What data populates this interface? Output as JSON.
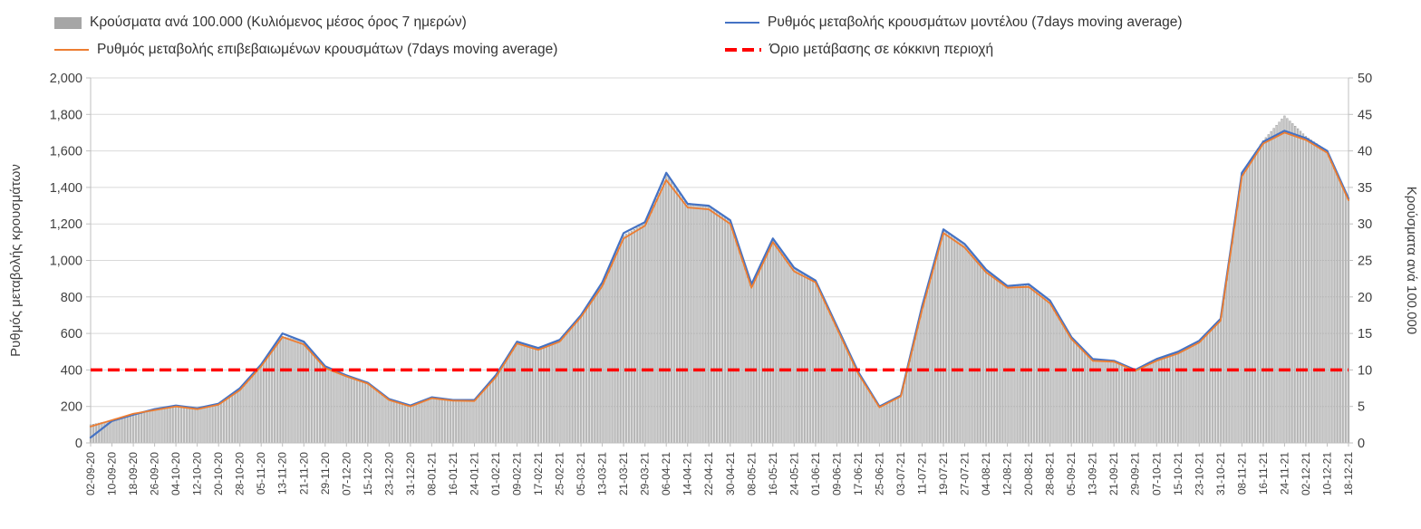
{
  "legend": {
    "bars": "Κρούσματα ανά 100.000 (Κυλιόμενος μέσος όρος 7 ημερών)",
    "model": "Ρυθμός μεταβολής κρουσμάτων μοντέλου (7days moving average)",
    "confirmed": "Ρυθμός μεταβολής επιβεβαιωμένων κρουσμάτων (7days moving average)",
    "threshold": "Όριο μετάβασης σε κόκκινη περιοχή"
  },
  "colors": {
    "bars": "#c9c9c9",
    "bars_stroke": "#8f8f8f",
    "model": "#4472c4",
    "confirmed": "#ed7d31",
    "threshold": "#ff0000",
    "grid": "#d9d9d9",
    "axis": "#bfbfbf",
    "text": "#404040"
  },
  "chart_data": {
    "type": "combo-bar-line",
    "x_tick_interval_days": 8,
    "x": [
      "02-09-20",
      "10-09-20",
      "18-09-20",
      "26-09-20",
      "04-10-20",
      "12-10-20",
      "20-10-20",
      "28-10-20",
      "05-11-20",
      "13-11-20",
      "21-11-20",
      "29-11-20",
      "07-12-20",
      "15-12-20",
      "23-12-20",
      "31-12-20",
      "08-01-21",
      "16-01-21",
      "24-01-21",
      "01-02-21",
      "09-02-21",
      "17-02-21",
      "25-02-21",
      "05-03-21",
      "13-03-21",
      "21-03-21",
      "29-03-21",
      "06-04-21",
      "14-04-21",
      "22-04-21",
      "30-04-21",
      "08-05-21",
      "16-05-21",
      "24-05-21",
      "01-06-21",
      "09-06-21",
      "17-06-21",
      "25-06-21",
      "03-07-21",
      "11-07-21",
      "19-07-21",
      "27-07-21",
      "04-08-21",
      "12-08-21",
      "20-08-21",
      "28-08-21",
      "05-09-21",
      "13-09-21",
      "21-09-21",
      "29-09-21",
      "07-10-21",
      "15-10-21",
      "23-10-21",
      "31-10-21",
      "08-11-21",
      "16-11-21",
      "24-11-21",
      "02-12-21",
      "10-12-21",
      "18-12-21"
    ],
    "series": [
      {
        "name": "Κρούσματα ανά 100.000 (Κυλιόμενος μέσος όρος 7 ημερών)",
        "type": "bar",
        "axis": "right",
        "values": [
          2.5,
          3.1,
          3.9,
          4.6,
          5.1,
          4.7,
          5.4,
          7.3,
          10.6,
          14.6,
          13.9,
          10.4,
          9.2,
          8.2,
          5.9,
          5.1,
          6.2,
          5.9,
          5.8,
          9.1,
          13.8,
          12.9,
          14.1,
          17.4,
          21.9,
          28.4,
          30.1,
          36.8,
          32.6,
          32.4,
          30.4,
          21.6,
          27.9,
          23.9,
          22.1,
          15.9,
          9.7,
          4.9,
          6.4,
          18.6,
          29.1,
          27.2,
          23.7,
          21.4,
          21.6,
          19.4,
          14.4,
          11.4,
          11.2,
          10.0,
          11.4,
          12.4,
          13.9,
          16.9,
          37.0,
          41.4,
          44.8,
          42.0,
          40.0,
          33.4
        ]
      },
      {
        "name": "Ρυθμός μεταβολής κρουσμάτων μοντέλου (7days moving average)",
        "type": "line",
        "axis": "left",
        "values": [
          30,
          120,
          155,
          185,
          205,
          190,
          215,
          300,
          430,
          600,
          555,
          420,
          370,
          330,
          240,
          205,
          250,
          235,
          235,
          370,
          555,
          520,
          565,
          700,
          880,
          1150,
          1210,
          1480,
          1310,
          1300,
          1220,
          870,
          1120,
          960,
          890,
          640,
          390,
          200,
          260,
          750,
          1170,
          1090,
          950,
          860,
          870,
          780,
          580,
          460,
          450,
          400,
          460,
          500,
          560,
          680,
          1480,
          1650,
          1710,
          1670,
          1600,
          1340
        ]
      },
      {
        "name": "Ρυθμός μεταβολής επιβεβαιωμένων κρουσμάτων (7days moving average)",
        "type": "line",
        "axis": "left",
        "values": [
          90,
          125,
          160,
          180,
          200,
          185,
          210,
          290,
          420,
          580,
          540,
          410,
          365,
          325,
          235,
          200,
          245,
          232,
          230,
          360,
          545,
          510,
          555,
          690,
          860,
          1120,
          1190,
          1440,
          1290,
          1280,
          1200,
          850,
          1100,
          940,
          880,
          630,
          380,
          195,
          255,
          730,
          1150,
          1070,
          935,
          850,
          855,
          765,
          570,
          450,
          445,
          395,
          450,
          490,
          550,
          670,
          1460,
          1640,
          1700,
          1660,
          1590,
          1330
        ]
      },
      {
        "name": "Όριο μετάβασης σε κόκκινη περιοχή",
        "type": "threshold",
        "axis": "left",
        "value": 400
      }
    ],
    "left_axis": {
      "title": "Ρυθμός μεταβολής κρουσμάτων",
      "min": 0,
      "max": 2000,
      "step": 200
    },
    "right_axis": {
      "title": "Κρούσματα ανά 100.000",
      "min": 0,
      "max": 50,
      "step": 5
    },
    "grid": true,
    "legend_position": "top"
  }
}
